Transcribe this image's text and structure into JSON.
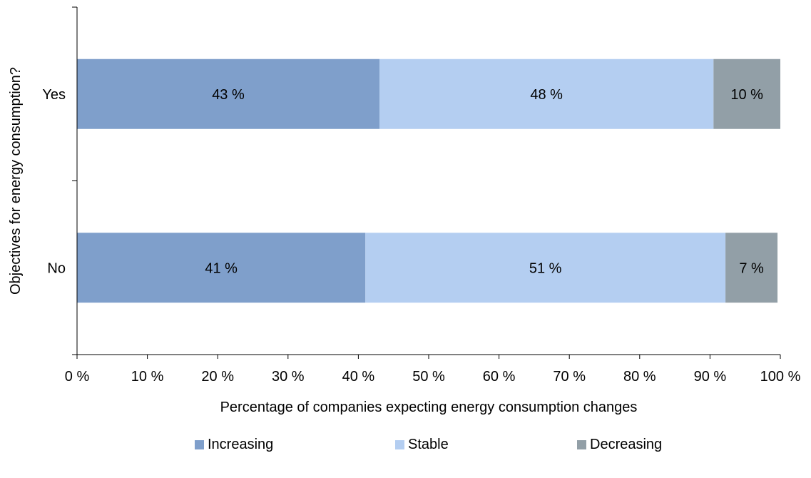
{
  "chart_data": {
    "type": "bar",
    "orientation": "horizontal",
    "stacked": true,
    "title": "",
    "xlabel": "Percentage of companies expecting energy consumption changes",
    "ylabel": "Objectives for energy consumption?",
    "categories": [
      "Yes",
      "No"
    ],
    "series": [
      {
        "name": "Increasing",
        "values": [
          43,
          41
        ],
        "labels": [
          "43 %",
          "41 %"
        ],
        "color": "#7f9fcb"
      },
      {
        "name": "Stable",
        "values": [
          47.5,
          51.2
        ],
        "labels": [
          "48 %",
          "51 %"
        ],
        "color": "#b4cef1"
      },
      {
        "name": "Decreasing",
        "values": [
          9.5,
          7.4
        ],
        "labels": [
          "10 %",
          "7 %"
        ],
        "color": "#929fa7"
      }
    ],
    "xlim": [
      0,
      100
    ],
    "xticks": [
      "0 %",
      "10 %",
      "20 %",
      "30 %",
      "40 %",
      "50 %",
      "60 %",
      "70 %",
      "80 %",
      "90 %",
      "100 %"
    ],
    "grid": false,
    "legend_position": "bottom"
  }
}
